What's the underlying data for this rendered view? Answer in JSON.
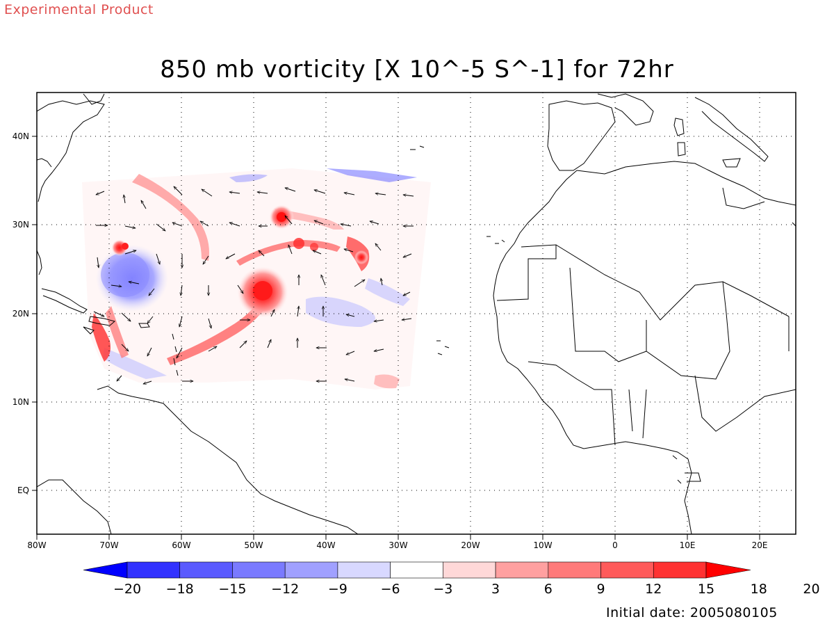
{
  "header": {
    "experimental_label": "Experimental Product",
    "title": "850 mb vorticity [X 10^-5 S^-1] for 72hr"
  },
  "footer": {
    "initial_date": "Initial date: 2005080105"
  },
  "chart_data": {
    "type": "heatmap",
    "title": "850 mb vorticity [X 10^-5 S^-1] for 72hr",
    "variable": "850 mb relative vorticity",
    "units": "X 10^-5 S^-1",
    "forecast_hour": "72hr",
    "map_projection": "cylindrical equidistant",
    "xlim": [
      -80,
      25
    ],
    "ylim": [
      -5,
      45
    ],
    "x_ticks": [
      {
        "value": -80,
        "label": "80W"
      },
      {
        "value": -70,
        "label": "70W"
      },
      {
        "value": -60,
        "label": "60W"
      },
      {
        "value": -50,
        "label": "50W"
      },
      {
        "value": -40,
        "label": "40W"
      },
      {
        "value": -30,
        "label": "30W"
      },
      {
        "value": -20,
        "label": "20W"
      },
      {
        "value": -10,
        "label": "10W"
      },
      {
        "value": 0,
        "label": "0"
      },
      {
        "value": 10,
        "label": "10E"
      },
      {
        "value": 20,
        "label": "20E"
      }
    ],
    "y_ticks": [
      {
        "value": 0,
        "label": "EQ"
      },
      {
        "value": 10,
        "label": "10N"
      },
      {
        "value": 20,
        "label": "20N"
      },
      {
        "value": 30,
        "label": "30N"
      },
      {
        "value": 40,
        "label": "40N"
      }
    ],
    "grid": "dotted",
    "colorbar": {
      "levels": [
        "-20",
        "-18",
        "-15",
        "-12",
        "-9",
        "-6",
        "-3",
        "3",
        "6",
        "9",
        "12",
        "15",
        "18",
        "20"
      ],
      "colors": [
        "#0000ff",
        "#3232ff",
        "#5a5aff",
        "#7a7aff",
        "#a0a0ff",
        "#d8d8ff",
        "#ffffff",
        "#ffd8d8",
        "#ffa0a0",
        "#ff7a7a",
        "#ff5a5a",
        "#ff3232",
        "#ff0000"
      ],
      "ends": "triangular extensions"
    },
    "features": [
      {
        "name": "cyclonic vortex",
        "lon": -50,
        "lat": 22.5,
        "max_level": "18"
      },
      {
        "name": "cyclonic vortex",
        "lon": -47.5,
        "lat": 30.8,
        "max_level": "18"
      },
      {
        "name": "anticyclonic region",
        "lon": -67,
        "lat": 23.5,
        "min_level": "-15"
      },
      {
        "name": "cyclonic vortex",
        "lon": -68,
        "lat": 27.5,
        "max_level": "18"
      },
      {
        "name": "cyclonic band",
        "lon": -35,
        "lat": 26.5,
        "max_level": "15"
      }
    ],
    "wind_vectors": "black arrows over data domain",
    "data_domain": {
      "lon": [
        -75,
        -30
      ],
      "lat": [
        12,
        36
      ]
    }
  },
  "colors": {
    "experimental_label": "#e05050",
    "positive_max": "#ff0000",
    "negative_max": "#0000ff",
    "coastline": "#000000"
  }
}
